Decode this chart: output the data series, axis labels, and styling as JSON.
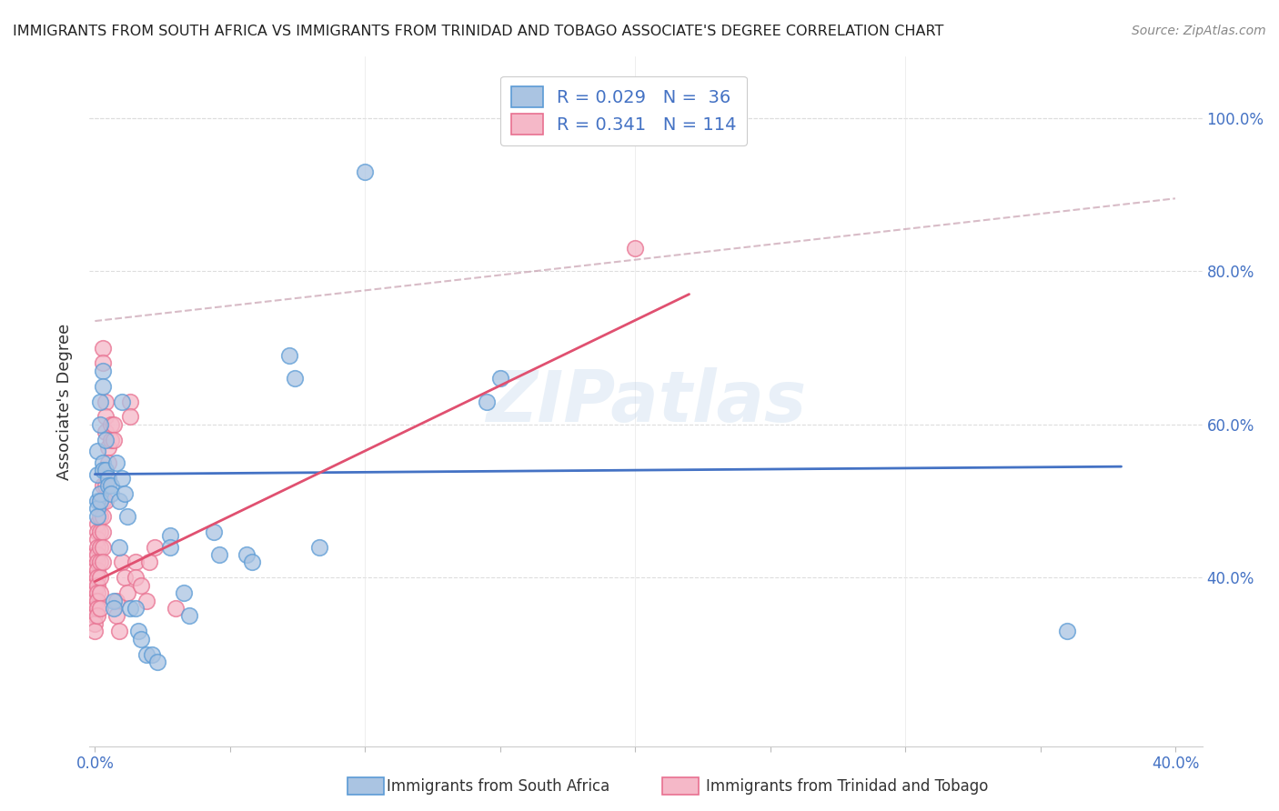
{
  "title": "IMMIGRANTS FROM SOUTH AFRICA VS IMMIGRANTS FROM TRINIDAD AND TOBAGO ASSOCIATE'S DEGREE CORRELATION CHART",
  "source": "Source: ZipAtlas.com",
  "ylabel": "Associate's Degree",
  "legend_blue_r": "0.029",
  "legend_blue_n": "36",
  "legend_pink_r": "0.341",
  "legend_pink_n": "114",
  "legend_blue_label": "Immigrants from South Africa",
  "legend_pink_label": "Immigrants from Trinidad and Tobago",
  "watermark": "ZIPatlas",
  "blue_fill": "#aac4e2",
  "blue_edge": "#5b9bd5",
  "pink_fill": "#f5b8c8",
  "pink_edge": "#e87090",
  "blue_line_color": "#4472c4",
  "pink_line_color": "#e05070",
  "dash_line_color": "#e0a0b0",
  "blue_scatter": [
    [
      0.001,
      0.535
    ],
    [
      0.001,
      0.565
    ],
    [
      0.001,
      0.5
    ],
    [
      0.001,
      0.49
    ],
    [
      0.001,
      0.48
    ],
    [
      0.002,
      0.63
    ],
    [
      0.002,
      0.6
    ],
    [
      0.002,
      0.51
    ],
    [
      0.002,
      0.5
    ],
    [
      0.003,
      0.67
    ],
    [
      0.003,
      0.65
    ],
    [
      0.003,
      0.55
    ],
    [
      0.003,
      0.54
    ],
    [
      0.004,
      0.58
    ],
    [
      0.004,
      0.54
    ],
    [
      0.005,
      0.53
    ],
    [
      0.005,
      0.52
    ],
    [
      0.006,
      0.52
    ],
    [
      0.006,
      0.51
    ],
    [
      0.007,
      0.37
    ],
    [
      0.007,
      0.36
    ],
    [
      0.008,
      0.55
    ],
    [
      0.009,
      0.5
    ],
    [
      0.009,
      0.44
    ],
    [
      0.01,
      0.63
    ],
    [
      0.01,
      0.53
    ],
    [
      0.011,
      0.51
    ],
    [
      0.012,
      0.48
    ],
    [
      0.013,
      0.36
    ],
    [
      0.015,
      0.36
    ],
    [
      0.016,
      0.33
    ],
    [
      0.017,
      0.32
    ],
    [
      0.019,
      0.3
    ],
    [
      0.021,
      0.3
    ],
    [
      0.023,
      0.29
    ],
    [
      0.028,
      0.455
    ],
    [
      0.028,
      0.44
    ],
    [
      0.033,
      0.38
    ],
    [
      0.035,
      0.35
    ],
    [
      0.044,
      0.46
    ],
    [
      0.046,
      0.43
    ],
    [
      0.056,
      0.43
    ],
    [
      0.058,
      0.42
    ],
    [
      0.072,
      0.69
    ],
    [
      0.074,
      0.66
    ],
    [
      0.083,
      0.44
    ],
    [
      0.1,
      0.93
    ],
    [
      0.145,
      0.63
    ],
    [
      0.15,
      0.66
    ],
    [
      0.36,
      0.33
    ]
  ],
  "pink_scatter": [
    [
      0.0,
      0.43
    ],
    [
      0.0,
      0.41
    ],
    [
      0.0,
      0.4
    ],
    [
      0.0,
      0.39
    ],
    [
      0.0,
      0.38
    ],
    [
      0.0,
      0.37
    ],
    [
      0.0,
      0.36
    ],
    [
      0.0,
      0.35
    ],
    [
      0.0,
      0.34
    ],
    [
      0.0,
      0.33
    ],
    [
      0.001,
      0.47
    ],
    [
      0.001,
      0.46
    ],
    [
      0.001,
      0.45
    ],
    [
      0.001,
      0.44
    ],
    [
      0.001,
      0.43
    ],
    [
      0.001,
      0.42
    ],
    [
      0.001,
      0.41
    ],
    [
      0.001,
      0.4
    ],
    [
      0.001,
      0.39
    ],
    [
      0.001,
      0.38
    ],
    [
      0.001,
      0.37
    ],
    [
      0.001,
      0.36
    ],
    [
      0.001,
      0.35
    ],
    [
      0.002,
      0.5
    ],
    [
      0.002,
      0.48
    ],
    [
      0.002,
      0.46
    ],
    [
      0.002,
      0.44
    ],
    [
      0.002,
      0.42
    ],
    [
      0.002,
      0.4
    ],
    [
      0.002,
      0.38
    ],
    [
      0.002,
      0.36
    ],
    [
      0.003,
      0.7
    ],
    [
      0.003,
      0.68
    ],
    [
      0.003,
      0.52
    ],
    [
      0.003,
      0.5
    ],
    [
      0.003,
      0.48
    ],
    [
      0.003,
      0.46
    ],
    [
      0.003,
      0.44
    ],
    [
      0.003,
      0.42
    ],
    [
      0.004,
      0.63
    ],
    [
      0.004,
      0.61
    ],
    [
      0.004,
      0.59
    ],
    [
      0.004,
      0.52
    ],
    [
      0.004,
      0.5
    ],
    [
      0.005,
      0.57
    ],
    [
      0.005,
      0.55
    ],
    [
      0.005,
      0.53
    ],
    [
      0.006,
      0.6
    ],
    [
      0.006,
      0.58
    ],
    [
      0.007,
      0.6
    ],
    [
      0.007,
      0.58
    ],
    [
      0.008,
      0.37
    ],
    [
      0.008,
      0.35
    ],
    [
      0.009,
      0.33
    ],
    [
      0.01,
      0.42
    ],
    [
      0.011,
      0.4
    ],
    [
      0.012,
      0.38
    ],
    [
      0.013,
      0.63
    ],
    [
      0.013,
      0.61
    ],
    [
      0.015,
      0.42
    ],
    [
      0.015,
      0.4
    ],
    [
      0.017,
      0.39
    ],
    [
      0.019,
      0.37
    ],
    [
      0.02,
      0.42
    ],
    [
      0.022,
      0.44
    ],
    [
      0.03,
      0.36
    ],
    [
      0.2,
      0.83
    ]
  ],
  "xlim": [
    -0.002,
    0.41
  ],
  "ylim": [
    0.18,
    1.08
  ],
  "blue_trend_x": [
    0.0,
    0.38
  ],
  "blue_trend_y": [
    0.535,
    0.545
  ],
  "pink_trend_x": [
    0.0,
    0.22
  ],
  "pink_trend_y": [
    0.395,
    0.77
  ],
  "dash_trend_x": [
    0.0,
    0.4
  ],
  "dash_trend_y": [
    0.735,
    0.895
  ],
  "background_color": "#ffffff",
  "grid_color": "#dddddd",
  "title_color": "#222222",
  "source_color": "#888888",
  "axis_label_color": "#4472c4",
  "ytick_positions": [
    1.0,
    0.8,
    0.6,
    0.4
  ],
  "ytick_labels": [
    "100.0%",
    "80.0%",
    "60.0%",
    "40.0%"
  ],
  "xtick_show": [
    "0.0%",
    "40.0%"
  ]
}
